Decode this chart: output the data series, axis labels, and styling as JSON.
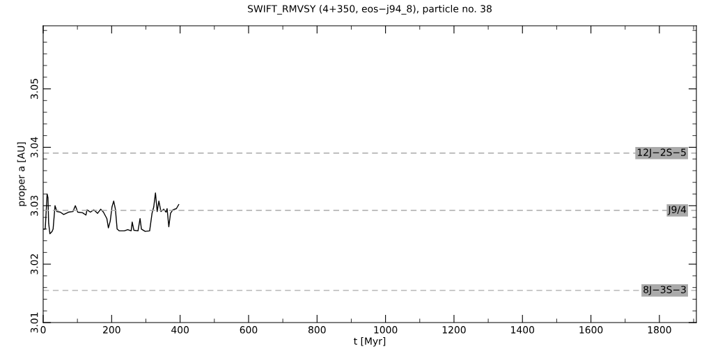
{
  "chart_data": {
    "type": "line",
    "title": "SWIFT_RMVSY (4+350, eos−j94_8), particle no. 38",
    "xlabel": "t [Myr]",
    "ylabel": "proper a [AU]",
    "xlim": [
      0,
      1908
    ],
    "ylim": [
      3.01,
      3.0608
    ],
    "xticks": [
      0,
      200,
      400,
      600,
      800,
      1000,
      1200,
      1400,
      1600,
      1800
    ],
    "yticks": [
      3.01,
      3.02,
      3.03,
      3.04,
      3.05
    ],
    "series": [
      {
        "color": "#000000",
        "x": [
          0,
          6,
          11.5,
          14,
          16,
          19.6,
          26,
          29,
          34.6,
          40,
          50,
          60,
          74,
          87,
          94,
          101,
          115,
          125,
          128,
          138,
          148,
          159,
          168,
          176,
          186,
          190.5,
          196,
          201,
          206,
          211,
          216,
          222,
          237,
          247,
          257,
          260,
          265,
          277,
          283,
          287,
          298,
          311,
          318,
          323,
          328,
          333,
          338,
          344,
          352,
          359,
          362,
          367,
          372,
          379,
          389,
          396
        ],
        "values": [
          3.026,
          3.026,
          3.032,
          3.0314,
          3.027,
          3.0252,
          3.0256,
          3.026,
          3.03,
          3.029,
          3.0289,
          3.0285,
          3.0289,
          3.029,
          3.03,
          3.0289,
          3.0288,
          3.0284,
          3.0293,
          3.0289,
          3.0293,
          3.0287,
          3.0294,
          3.0289,
          3.0278,
          3.0262,
          3.0274,
          3.0298,
          3.0308,
          3.0294,
          3.026,
          3.0257,
          3.0257,
          3.0259,
          3.0257,
          3.0272,
          3.0258,
          3.0257,
          3.0278,
          3.026,
          3.0256,
          3.0257,
          3.0287,
          3.0298,
          3.0322,
          3.029,
          3.0308,
          3.029,
          3.0294,
          3.0289,
          3.0295,
          3.0264,
          3.0287,
          3.0293,
          3.0295,
          3.0302
        ]
      }
    ],
    "ref_lines": [
      {
        "axis": "y",
        "value": 3.039,
        "label": "12J−2S−5",
        "color": "#aaaaaa",
        "line_style": "dashed"
      },
      {
        "axis": "y",
        "value": 3.0292,
        "label": "J9/4",
        "color": "#aaaaaa",
        "line_style": "dashed"
      },
      {
        "axis": "y",
        "value": 3.0155,
        "label": "8J−3S−3",
        "color": "#aaaaaa",
        "line_style": "dashed"
      }
    ],
    "grid": false,
    "legend": false
  }
}
